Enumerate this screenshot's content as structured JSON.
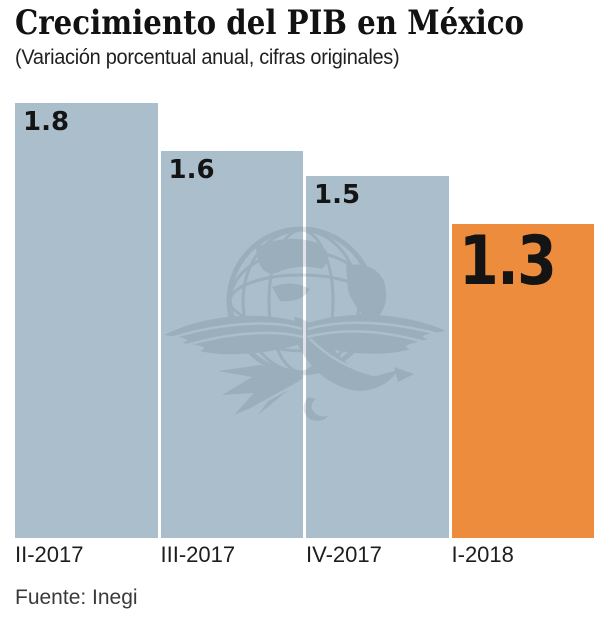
{
  "header": {
    "title": "Crecimiento del PIB en México",
    "subtitle": "(Variación porcentual anual, cifras originales)"
  },
  "footer": {
    "source": "Fuente: Inegi"
  },
  "watermark": {
    "name": "el-economista-eagle-globe-logo"
  },
  "chart_data": {
    "type": "bar",
    "title": "Crecimiento del PIB en México",
    "subtitle": "(Variación porcentual anual, cifras originales)",
    "categories": [
      "II-2017",
      "III-2017",
      "IV-2017",
      "I-2018"
    ],
    "values": [
      1.8,
      1.6,
      1.5,
      1.3
    ],
    "value_labels": [
      "1.8",
      "1.6",
      "1.5",
      "1.3"
    ],
    "highlight_index": 3,
    "xlabel": "",
    "ylabel": "",
    "ylim": [
      0,
      1.8
    ],
    "grid": false,
    "legend": false,
    "value_label_position": "inside-top-left",
    "source": "Fuente: Inegi",
    "colors": {
      "bar": "#abbecb",
      "highlight": "#ee8c3e",
      "value_text": "#141414",
      "title_text": "#121212",
      "watermark": "#4e6374"
    }
  }
}
